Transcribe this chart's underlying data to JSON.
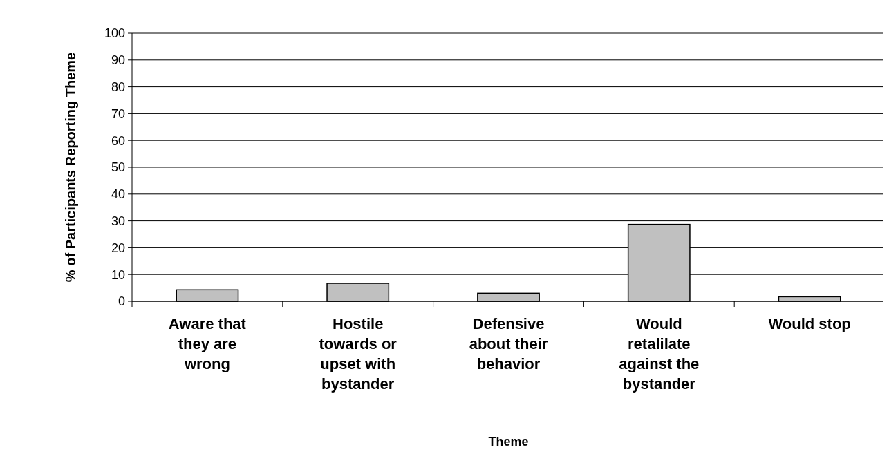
{
  "chart_data": {
    "type": "bar",
    "xlabel": "Theme",
    "ylabel": "% of Participants Reporting Theme",
    "categories": [
      "Aware that they are wrong",
      "Hostile towards or upset with bystander",
      "Defensive about their behavior",
      "Would retalilate against the bystander",
      "Would stop"
    ],
    "values": [
      4.3,
      6.7,
      3.0,
      28.7,
      1.7
    ],
    "color": "#c0c0c0",
    "ylim": [
      0,
      100
    ],
    "yticks": [
      0,
      10,
      20,
      30,
      40,
      50,
      60,
      70,
      80,
      90,
      100
    ],
    "grid": "y"
  }
}
